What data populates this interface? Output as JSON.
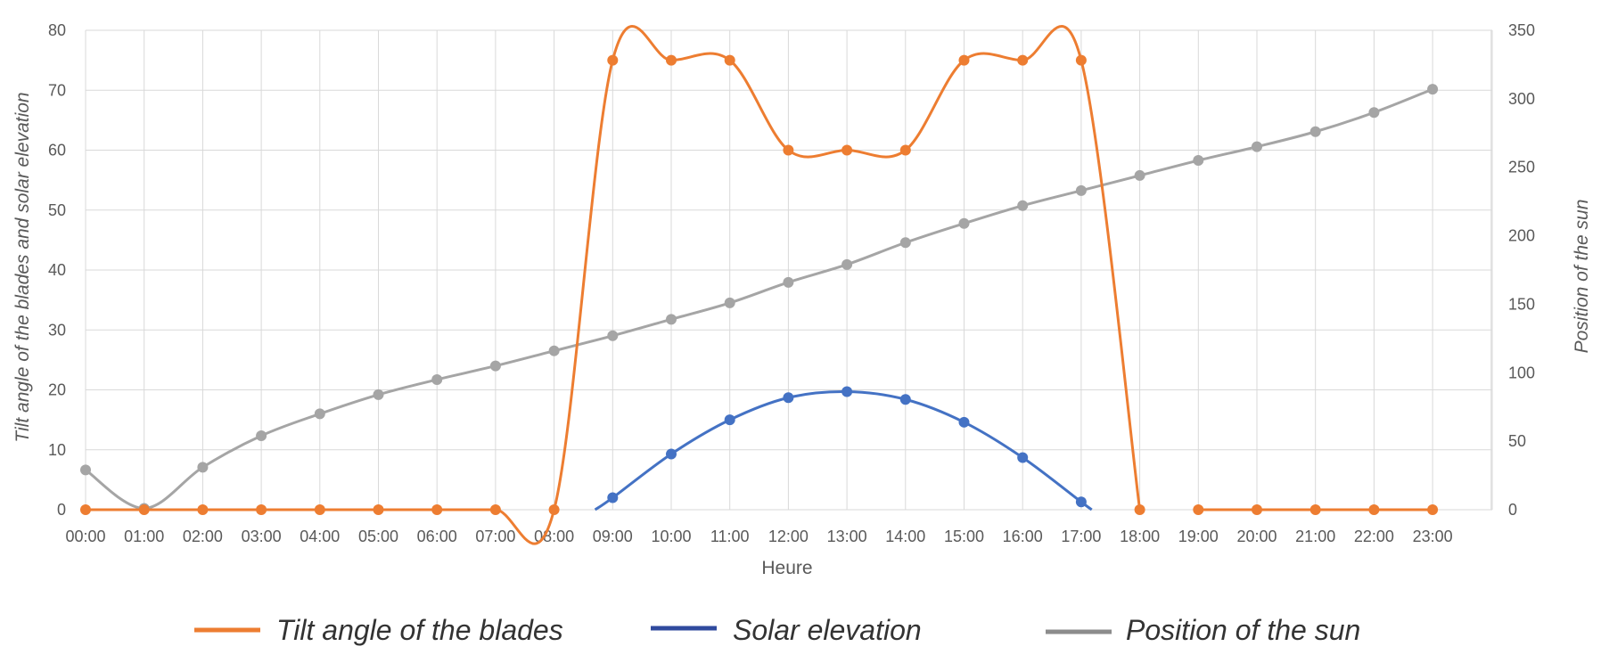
{
  "chart_data": {
    "type": "line",
    "title": "",
    "xlabel": "Heure",
    "ylabel_left": "Tilt angle of the blades and solar elevation",
    "ylabel_right": "Position of the sun",
    "x": [
      "00:00",
      "01:00",
      "02:00",
      "03:00",
      "04:00",
      "05:00",
      "06:00",
      "07:00",
      "08:00",
      "09:00",
      "10:00",
      "11:00",
      "12:00",
      "13:00",
      "14:00",
      "15:00",
      "16:00",
      "17:00",
      "18:00",
      "19:00",
      "20:00",
      "21:00",
      "22:00",
      "23:00"
    ],
    "y_left_ticks": [
      0,
      10,
      20,
      30,
      40,
      50,
      60,
      70,
      80
    ],
    "y_right_ticks": [
      0,
      50,
      100,
      150,
      200,
      250,
      300,
      350
    ],
    "ylim_left": [
      0,
      80
    ],
    "ylim_right": [
      0,
      350
    ],
    "grid": true,
    "legend_position": "bottom",
    "series": [
      {
        "name": "Tilt angle of the blades",
        "axis": "left",
        "color": "#ED7D31",
        "x": [
          "00:00",
          "01:00",
          "02:00",
          "03:00",
          "04:00",
          "05:00",
          "06:00",
          "07:00",
          "08:00",
          "09:00",
          "10:00",
          "11:00",
          "12:00",
          "13:00",
          "14:00",
          "15:00",
          "16:00",
          "17:00",
          "18:00"
        ],
        "values": [
          0,
          0,
          0,
          0,
          0,
          0,
          0,
          0,
          0,
          75,
          75,
          75,
          60,
          60,
          60,
          75,
          75,
          75,
          0
        ]
      },
      {
        "name": "Tilt angle of the blades",
        "axis": "left",
        "color": "#ED7D31",
        "continuation": true,
        "x": [
          "19:00",
          "20:00",
          "21:00",
          "22:00",
          "23:00"
        ],
        "values": [
          0,
          0,
          0,
          0,
          0
        ]
      },
      {
        "name": "Solar elevation",
        "axis": "left",
        "color": "#4472C4",
        "x": [
          "09:00",
          "10:00",
          "11:00",
          "12:00",
          "13:00",
          "14:00",
          "15:00",
          "16:00",
          "17:00"
        ],
        "values": [
          2,
          9.3,
          15,
          18.7,
          19.7,
          18.4,
          14.6,
          8.7,
          1.3
        ]
      },
      {
        "name": "Position of the sun",
        "axis": "right",
        "color": "#A5A5A5",
        "x": [
          "00:00",
          "01:00",
          "02:00",
          "03:00",
          "04:00",
          "05:00",
          "06:00",
          "07:00",
          "08:00",
          "09:00",
          "10:00",
          "11:00",
          "12:00",
          "13:00",
          "14:00",
          "15:00",
          "16:00",
          "17:00",
          "18:00",
          "19:00",
          "20:00",
          "21:00",
          "22:00",
          "23:00"
        ],
        "values": [
          29,
          1,
          31,
          54,
          70,
          84,
          95,
          105,
          116,
          127,
          139,
          151,
          166,
          179,
          195,
          209,
          222,
          233,
          244,
          255,
          265,
          276,
          290,
          307
        ]
      }
    ],
    "legend": [
      {
        "label": "Tilt angle of the blades",
        "color": "#ED7D31"
      },
      {
        "label": "Solar elevation",
        "color": "#2F4A9E"
      },
      {
        "label": "Position of the sun",
        "color": "#8C8C8C"
      }
    ]
  }
}
